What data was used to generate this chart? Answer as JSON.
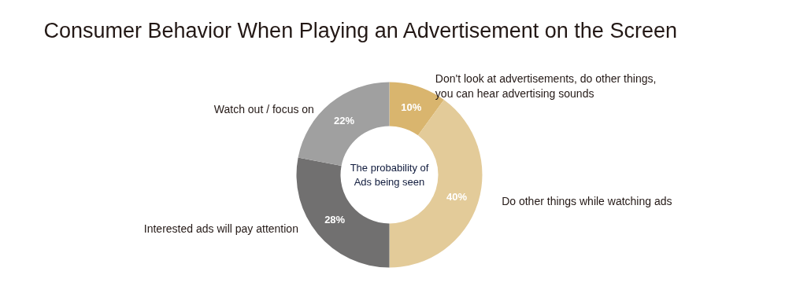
{
  "chart_data": {
    "type": "donut",
    "title": "Consumer Behavior When Playing an Advertisement on the Screen",
    "categories": [
      "Don't look at advertisements, do other things, you can hear advertising sounds",
      "Do other things while watching ads",
      "Interested ads will pay attention",
      "Watch out / focus on"
    ],
    "values": [
      10,
      40,
      28,
      22
    ],
    "colors": [
      "#d9b56e",
      "#e3cb99",
      "#717070",
      "#a0a0a0"
    ],
    "value_labels": [
      "10%",
      "40%",
      "28%",
      "22%"
    ],
    "annotations": [
      "The probability of Ads being seen"
    ]
  }
}
